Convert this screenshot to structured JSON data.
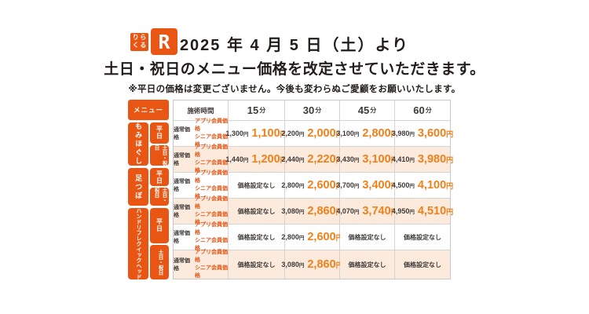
{
  "logo": {
    "chars": [
      "り",
      "ら",
      "く",
      "る"
    ],
    "mark": "R"
  },
  "header": {
    "title_line1": "2025 年 4 月 5 日（土）より",
    "title_line2": "土日・祝日のメニュー価格を改定させていただきます。",
    "note": "※平日の価格は変更ございません。今後も変わらぬご愛顧をお願いいたします。"
  },
  "table": {
    "menu_header": "メニュー",
    "time_header": "施術時間",
    "durations": [
      {
        "num": "15",
        "unit": "分"
      },
      {
        "num": "30",
        "unit": "分"
      },
      {
        "num": "45",
        "unit": "分"
      },
      {
        "num": "60",
        "unit": "分"
      }
    ],
    "price_labels": {
      "regular": "通常価格",
      "member": [
        "アプリ会員価格",
        "シニア会員価格"
      ]
    },
    "day_labels": {
      "weekday": "平日",
      "weekend": "土日・祝日"
    },
    "no_price": "価格設定なし",
    "yen": "円",
    "menus": [
      {
        "name": [
          "もみほぐし"
        ],
        "rows": [
          {
            "day": "weekday",
            "prices": [
              {
                "regular": "1,300",
                "member": "1,100"
              },
              {
                "regular": "2,200",
                "member": "2,000"
              },
              {
                "regular": "3,100",
                "member": "2,800"
              },
              {
                "regular": "3,980",
                "member": "3,600"
              }
            ]
          },
          {
            "day": "weekend",
            "prices": [
              {
                "regular": "1,440",
                "member": "1,200"
              },
              {
                "regular": "2,440",
                "member": "2,220"
              },
              {
                "regular": "3,430",
                "member": "3,100"
              },
              {
                "regular": "4,410",
                "member": "3,980"
              }
            ]
          }
        ]
      },
      {
        "name": [
          "足つぼ"
        ],
        "rows": [
          {
            "day": "weekday",
            "prices": [
              null,
              {
                "regular": "2,800",
                "member": "2,600"
              },
              {
                "regular": "3,700",
                "member": "3,400"
              },
              {
                "regular": "4,500",
                "member": "4,100"
              }
            ]
          },
          {
            "day": "weekend",
            "prices": [
              null,
              {
                "regular": "3,080",
                "member": "2,860"
              },
              {
                "regular": "4,070",
                "member": "3,740"
              },
              {
                "regular": "4,950",
                "member": "4,510"
              }
            ]
          }
        ]
      },
      {
        "name": [
          "ハンドリフレ",
          "クイックヘッド"
        ],
        "rows": [
          {
            "day": "weekday",
            "prices": [
              null,
              {
                "regular": "2,800",
                "member": "2,600"
              },
              null,
              null
            ]
          },
          {
            "day": "weekend",
            "prices": [
              null,
              {
                "regular": "3,080",
                "member": "2,860"
              },
              null,
              null
            ]
          }
        ]
      }
    ]
  },
  "colors": {
    "brand_orange": "#e95513",
    "price_orange": "#f0801a",
    "weekend_row_bg": "#fcebdd",
    "text_dark": "#3e3a39",
    "border_gray": "#c8c8c8"
  }
}
